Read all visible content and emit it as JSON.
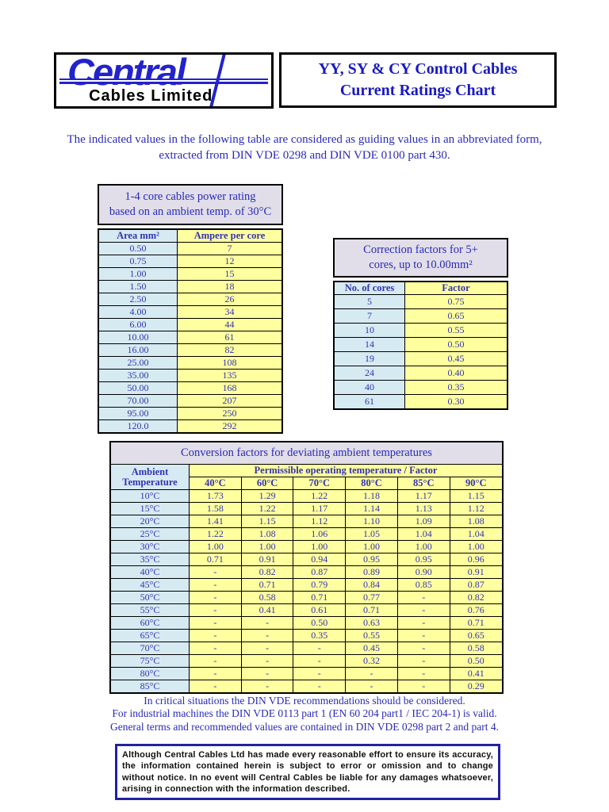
{
  "colors": {
    "accent_blue": "#2323cc",
    "text_blue": "#2a2ab8",
    "cell_blue": "#d6eaf2",
    "cell_yellow": "#feff9e",
    "band_lavender": "#e1dee9",
    "disclaimer_border": "#2222a0"
  },
  "header": {
    "logo_text": "Central",
    "logo_subtext": "Cables Limited",
    "title": "YY, SY & CY Control Cables\nCurrent Ratings Chart"
  },
  "intro": "The indicated values in the following table are considered as guiding values in an abbreviated form,\nextracted from DIN VDE 0298 and DIN VDE 0100 part 430.",
  "table1": {
    "title": "1-4 core cables power rating\nbased on an ambient temp. of 30°C",
    "headers": [
      "Area mm²",
      "Ampere per core"
    ],
    "rows": [
      [
        "0.50",
        "7"
      ],
      [
        "0.75",
        "12"
      ],
      [
        "1.00",
        "15"
      ],
      [
        "1.50",
        "18"
      ],
      [
        "2.50",
        "26"
      ],
      [
        "4.00",
        "34"
      ],
      [
        "6.00",
        "44"
      ],
      [
        "10.00",
        "61"
      ],
      [
        "16.00",
        "82"
      ],
      [
        "25.00",
        "108"
      ],
      [
        "35.00",
        "135"
      ],
      [
        "50.00",
        "168"
      ],
      [
        "70.00",
        "207"
      ],
      [
        "95.00",
        "250"
      ],
      [
        "120.0",
        "292"
      ]
    ]
  },
  "table2": {
    "title": "Correction factors for 5+\ncores, up to 10.00mm²",
    "headers": [
      "No. of cores",
      "Factor"
    ],
    "rows": [
      [
        "5",
        "0.75"
      ],
      [
        "7",
        "0.65"
      ],
      [
        "10",
        "0.55"
      ],
      [
        "14",
        "0.50"
      ],
      [
        "19",
        "0.45"
      ],
      [
        "24",
        "0.40"
      ],
      [
        "40",
        "0.35"
      ],
      [
        "61",
        "0.30"
      ]
    ]
  },
  "table3": {
    "title": "Conversion factors for deviating ambient temperatures",
    "corner_header": "Ambient\nTemperature",
    "span_header": "Permissible operating temperature / Factor",
    "temp_headers": [
      "40°C",
      "60°C",
      "70°C",
      "80°C",
      "85°C",
      "90°C"
    ],
    "rows": [
      [
        "10°C",
        "1.73",
        "1.29",
        "1.22",
        "1.18",
        "1.17",
        "1.15"
      ],
      [
        "15°C",
        "1.58",
        "1.22",
        "1.17",
        "1.14",
        "1.13",
        "1.12"
      ],
      [
        "20°C",
        "1.41",
        "1.15",
        "1.12",
        "1.10",
        "1.09",
        "1.08"
      ],
      [
        "25°C",
        "1.22",
        "1.08",
        "1.06",
        "1.05",
        "1.04",
        "1.04"
      ],
      [
        "30°C",
        "1.00",
        "1.00",
        "1.00",
        "1.00",
        "1.00",
        "1.00"
      ],
      [
        "35°C",
        "0.71",
        "0.91",
        "0.94",
        "0.95",
        "0.95",
        "0.96"
      ],
      [
        "40°C",
        "-",
        "0.82",
        "0.87",
        "0.89",
        "0.90",
        "0.91"
      ],
      [
        "45°C",
        "-",
        "0.71",
        "0.79",
        "0.84",
        "0.85",
        "0.87"
      ],
      [
        "50°C",
        "-",
        "0.58",
        "0.71",
        "0.77",
        "-",
        "0.82"
      ],
      [
        "55°C",
        "-",
        "0.41",
        "0.61",
        "0.71",
        "-",
        "0.76"
      ],
      [
        "60°C",
        "-",
        "-",
        "0.50",
        "0.63",
        "-",
        "0.71"
      ],
      [
        "65°C",
        "-",
        "-",
        "0.35",
        "0.55",
        "-",
        "0.65"
      ],
      [
        "70°C",
        "-",
        "-",
        "-",
        "0.45",
        "-",
        "0.58"
      ],
      [
        "75°C",
        "-",
        "-",
        "-",
        "0.32",
        "-",
        "0.50"
      ],
      [
        "80°C",
        "-",
        "-",
        "-",
        "-",
        "-",
        "0.41"
      ],
      [
        "85°C",
        "-",
        "-",
        "-",
        "-",
        "-",
        "0.29"
      ]
    ]
  },
  "notes": "In critical situations the DIN VDE recommendations should be considered.\nFor industrial machines the DIN VDE 0113 part 1 (EN 60 204 part1 / IEC 204-1) is valid.\nGeneral terms and recommended values are contained in DIN VDE 0298 part 2 and part 4.",
  "disclaimer": "Although Central Cables Ltd has made every reasonable effort to ensure its accuracy, the information contained herein is subject to error or omission and to change without notice. In no event will Central Cables be liable for any damages whatsoever, arising in connection with the information described."
}
